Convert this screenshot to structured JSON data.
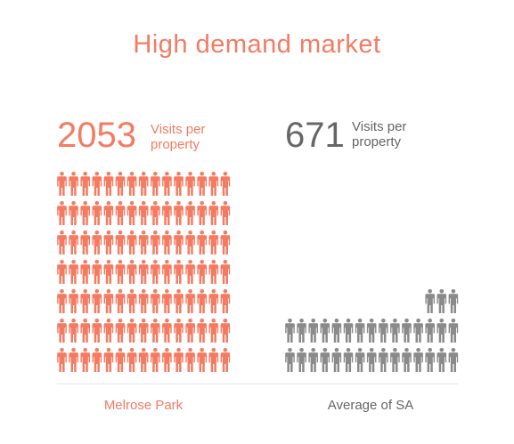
{
  "chart_data": {
    "type": "pictograph",
    "title": "High demand market",
    "unit_label": "Visits per property",
    "series": [
      {
        "category": "Melrose Park",
        "value": 2053,
        "unit_text": [
          "Visits per",
          "property"
        ],
        "color": "#f47b62",
        "icon_count": 105
      },
      {
        "category": "Average of SA",
        "value": 671,
        "unit_text": [
          "Visits per",
          "property"
        ],
        "color": "#8a8a8a",
        "icon_count": 33
      }
    ],
    "icon": "person-icon"
  }
}
